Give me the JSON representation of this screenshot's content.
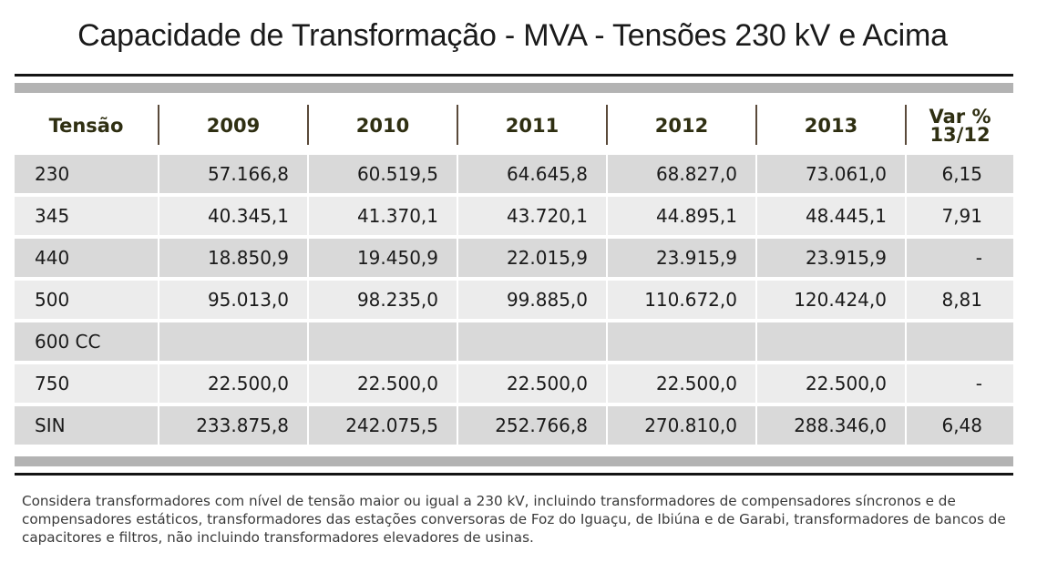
{
  "title": "Capacidade de Transformação - MVA - Tensões 230 kV e Acima",
  "table": {
    "headers": [
      "Tensão",
      "2009",
      "2010",
      "2011",
      "2012",
      "2013",
      "Var %",
      "13/12"
    ],
    "rows": [
      [
        "230",
        "57.166,8",
        "60.519,5",
        "64.645,8",
        "68.827,0",
        "73.061,0",
        "6,15"
      ],
      [
        "345",
        "40.345,1",
        "41.370,1",
        "43.720,1",
        "44.895,1",
        "48.445,1",
        "7,91"
      ],
      [
        "440",
        "18.850,9",
        "19.450,9",
        "22.015,9",
        "23.915,9",
        "23.915,9",
        "-"
      ],
      [
        "500",
        "95.013,0",
        "98.235,0",
        "99.885,0",
        "110.672,0",
        "120.424,0",
        "8,81"
      ],
      [
        "600 CC",
        "",
        "",
        "",
        "",
        "",
        ""
      ],
      [
        "750",
        "22.500,0",
        "22.500,0",
        "22.500,0",
        "22.500,0",
        "22.500,0",
        "-"
      ],
      [
        "SIN",
        "233.875,8",
        "242.075,5",
        "252.766,8",
        "270.810,0",
        "288.346,0",
        "6,48"
      ]
    ]
  },
  "note": "Considera transformadores com nível de tensão maior ou igual a 230 kV, incluindo transformadores de compensadores síncronos e de compensadores estáticos, transformadores das estações conversoras de Foz do Iguaçu, de Ibiúna e de Garabi, transformadores de bancos de capacitores e filtros, não incluindo transformadores elevadores de usinas."
}
